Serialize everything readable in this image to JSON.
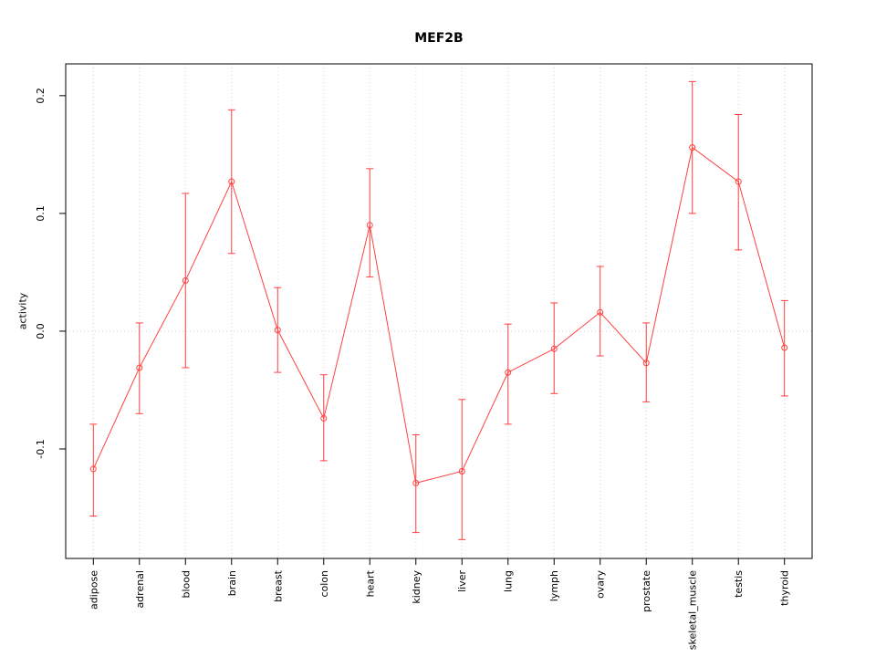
{
  "chart_data": {
    "type": "line",
    "title": "MEF2B",
    "ylabel": "activity",
    "xlabel": "",
    "legend": null,
    "grid": "dotted-vertical-per-category-plus-zero-line",
    "categories": [
      "adipose",
      "adrenal",
      "blood",
      "brain",
      "breast",
      "colon",
      "heart",
      "kidney",
      "liver",
      "lung",
      "lymph",
      "ovary",
      "prostate",
      "skeletal_muscle",
      "testis",
      "thyroid"
    ],
    "values": [
      -0.117,
      -0.031,
      0.043,
      0.127,
      0.001,
      -0.074,
      0.09,
      -0.129,
      -0.119,
      -0.035,
      -0.015,
      0.016,
      -0.027,
      0.156,
      0.127,
      -0.014
    ],
    "error_low": [
      -0.157,
      -0.07,
      -0.031,
      0.066,
      -0.035,
      -0.11,
      0.046,
      -0.171,
      -0.177,
      -0.079,
      -0.053,
      -0.021,
      -0.06,
      0.1,
      0.069,
      -0.055
    ],
    "error_high": [
      -0.079,
      0.007,
      0.117,
      0.188,
      0.037,
      -0.037,
      0.138,
      -0.088,
      -0.058,
      0.006,
      0.024,
      0.055,
      0.007,
      0.212,
      0.184,
      0.026
    ],
    "ytick_values": [
      -0.1,
      0.0,
      0.1,
      0.2
    ],
    "ytick_labels": [
      "-0.1",
      "0.0",
      "0.1",
      "0.2"
    ],
    "ylim": [
      -0.193,
      0.227
    ],
    "series_color": "#ff4040",
    "grid_color": "#d4d4d4",
    "box_color": "#000000",
    "point_style": "open-circle"
  }
}
